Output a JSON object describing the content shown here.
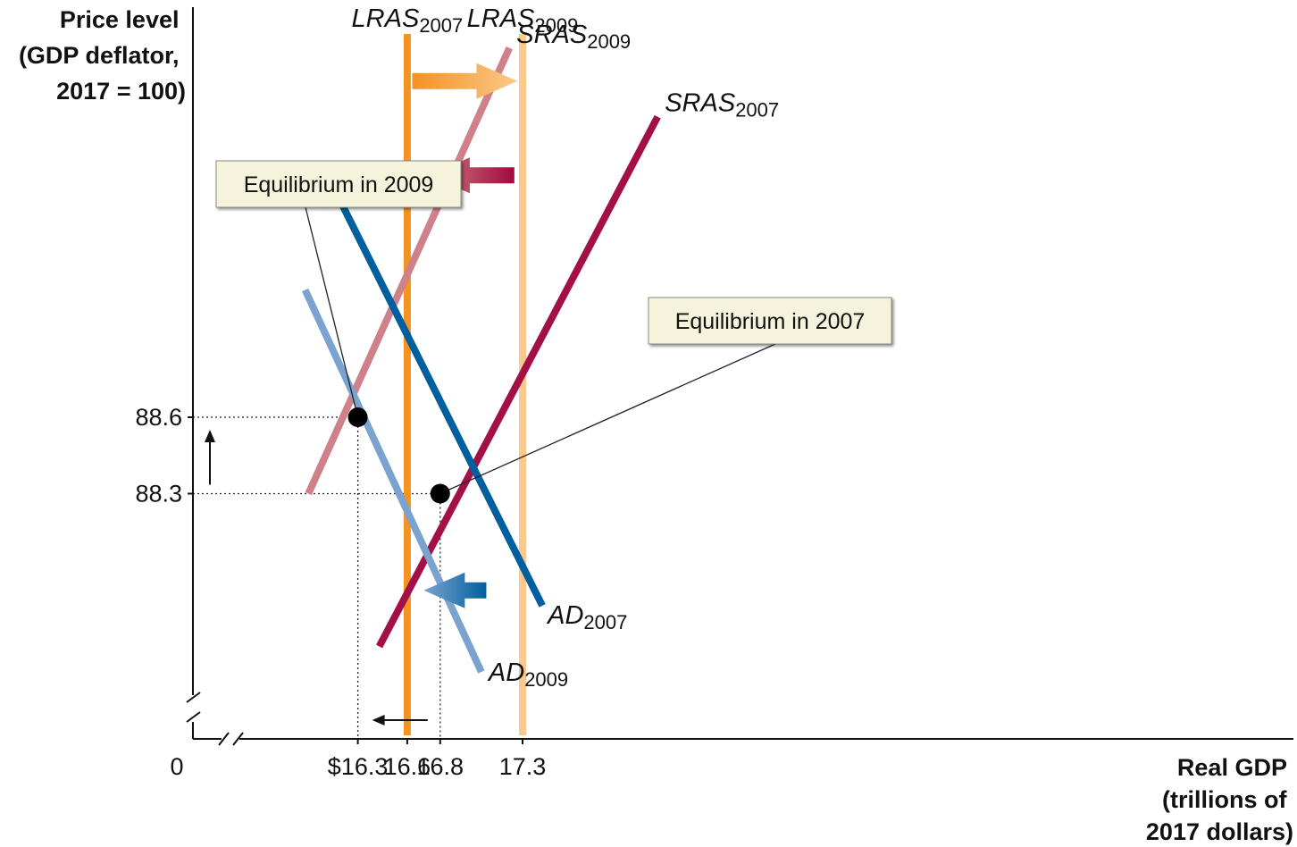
{
  "chart_data": {
    "type": "line",
    "title": "",
    "ylabel_lines": [
      "Price level",
      "(GDP deflator,",
      "2017 = 100)"
    ],
    "xlabel_lines": [
      "Real GDP",
      "(trillions of",
      "2017 dollars)"
    ],
    "origin_label": "0",
    "x_ticks": [
      {
        "value": 16.3,
        "label": "$16.3"
      },
      {
        "value": 16.6,
        "label": "16.6"
      },
      {
        "value": 16.8,
        "label": "16.8"
      },
      {
        "value": 17.3,
        "label": "17.3"
      }
    ],
    "y_ticks": [
      {
        "value": 88.6,
        "label": "88.6"
      },
      {
        "value": 88.3,
        "label": "88.3"
      }
    ],
    "xlim": [
      15.9,
      18.3
    ],
    "ylim": [
      87.5,
      90.2
    ],
    "axis_break": true,
    "series": [
      {
        "name": "LRAS",
        "sub": "2007",
        "kind": "vertical",
        "x": 16.6,
        "color": "#f39322"
      },
      {
        "name": "LRAS",
        "sub": "2009",
        "kind": "vertical",
        "x": 17.3,
        "color": "#f9c98e"
      },
      {
        "name": "SRAS",
        "sub": "2009",
        "kind": "line",
        "x": [
          16.0,
          17.22
        ],
        "y": [
          88.3,
          90.05
        ],
        "color": "#d08088"
      },
      {
        "name": "SRAS",
        "sub": "2007",
        "kind": "line",
        "x": [
          16.43,
          18.12
        ],
        "y": [
          87.7,
          89.78
        ],
        "color": "#a31045"
      },
      {
        "name": "AD",
        "sub": "2007",
        "kind": "line",
        "x": [
          16.17,
          17.42
        ],
        "y": [
          89.48,
          87.86
        ],
        "color": "#005f9e"
      },
      {
        "name": "AD",
        "sub": "2009",
        "kind": "line",
        "x": [
          15.98,
          17.05
        ],
        "y": [
          89.1,
          87.6
        ],
        "color": "#7aa3cf"
      }
    ],
    "equilibria": [
      {
        "label": "Equilibrium in 2009",
        "x": 16.3,
        "y": 88.6
      },
      {
        "label": "Equilibrium in 2007",
        "x": 16.8,
        "y": 88.3
      }
    ],
    "shift_arrows": [
      {
        "from_x": 16.63,
        "to_x": 17.27,
        "y": 89.92,
        "from_color": "#f39322",
        "to_color": "#fcc88a"
      },
      {
        "from_x": 17.25,
        "to_x": 16.73,
        "y": 89.55,
        "from_color": "#a00a40",
        "to_color": "#d08088"
      },
      {
        "from_x": 17.08,
        "to_x": 16.7,
        "y": 87.92,
        "from_color": "#005f9e",
        "to_color": "#7aa3cf"
      }
    ]
  }
}
